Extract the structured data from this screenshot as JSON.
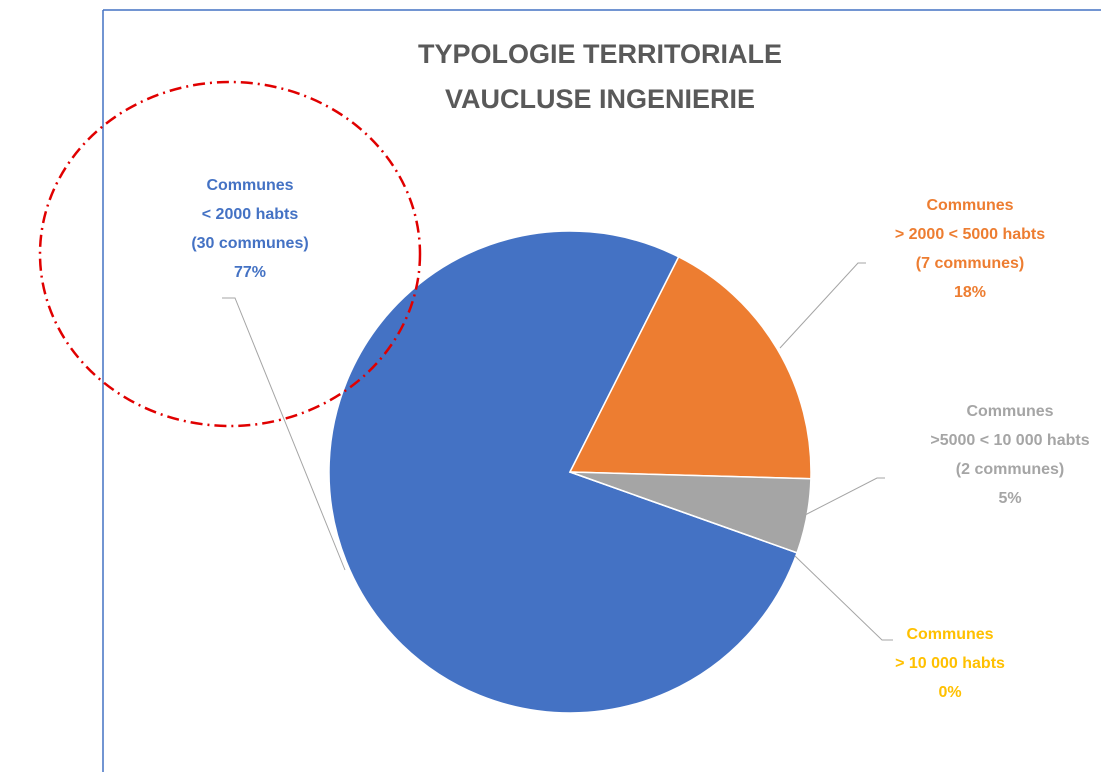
{
  "chart_data": {
    "type": "pie",
    "title": [
      "TYPOLOGIE TERRITORIALE",
      "VAUCLUSE INGENIERIE"
    ],
    "categories": [
      [
        "Communes",
        "< 2000 habts",
        "(30 communes)"
      ],
      [
        "Communes",
        "> 2000 < 5000 habts",
        "(7 communes)"
      ],
      [
        "Communes",
        ">5000 < 10 000 habts",
        "(2 communes)"
      ],
      [
        "Communes",
        "> 10 000 habts"
      ]
    ],
    "values": [
      77,
      18,
      5,
      0
    ],
    "value_labels": [
      "77%",
      "18%",
      "5%",
      "0%"
    ],
    "colors": [
      "#4472c4",
      "#ed7d31",
      "#a5a5a5",
      "#ffc000"
    ]
  }
}
